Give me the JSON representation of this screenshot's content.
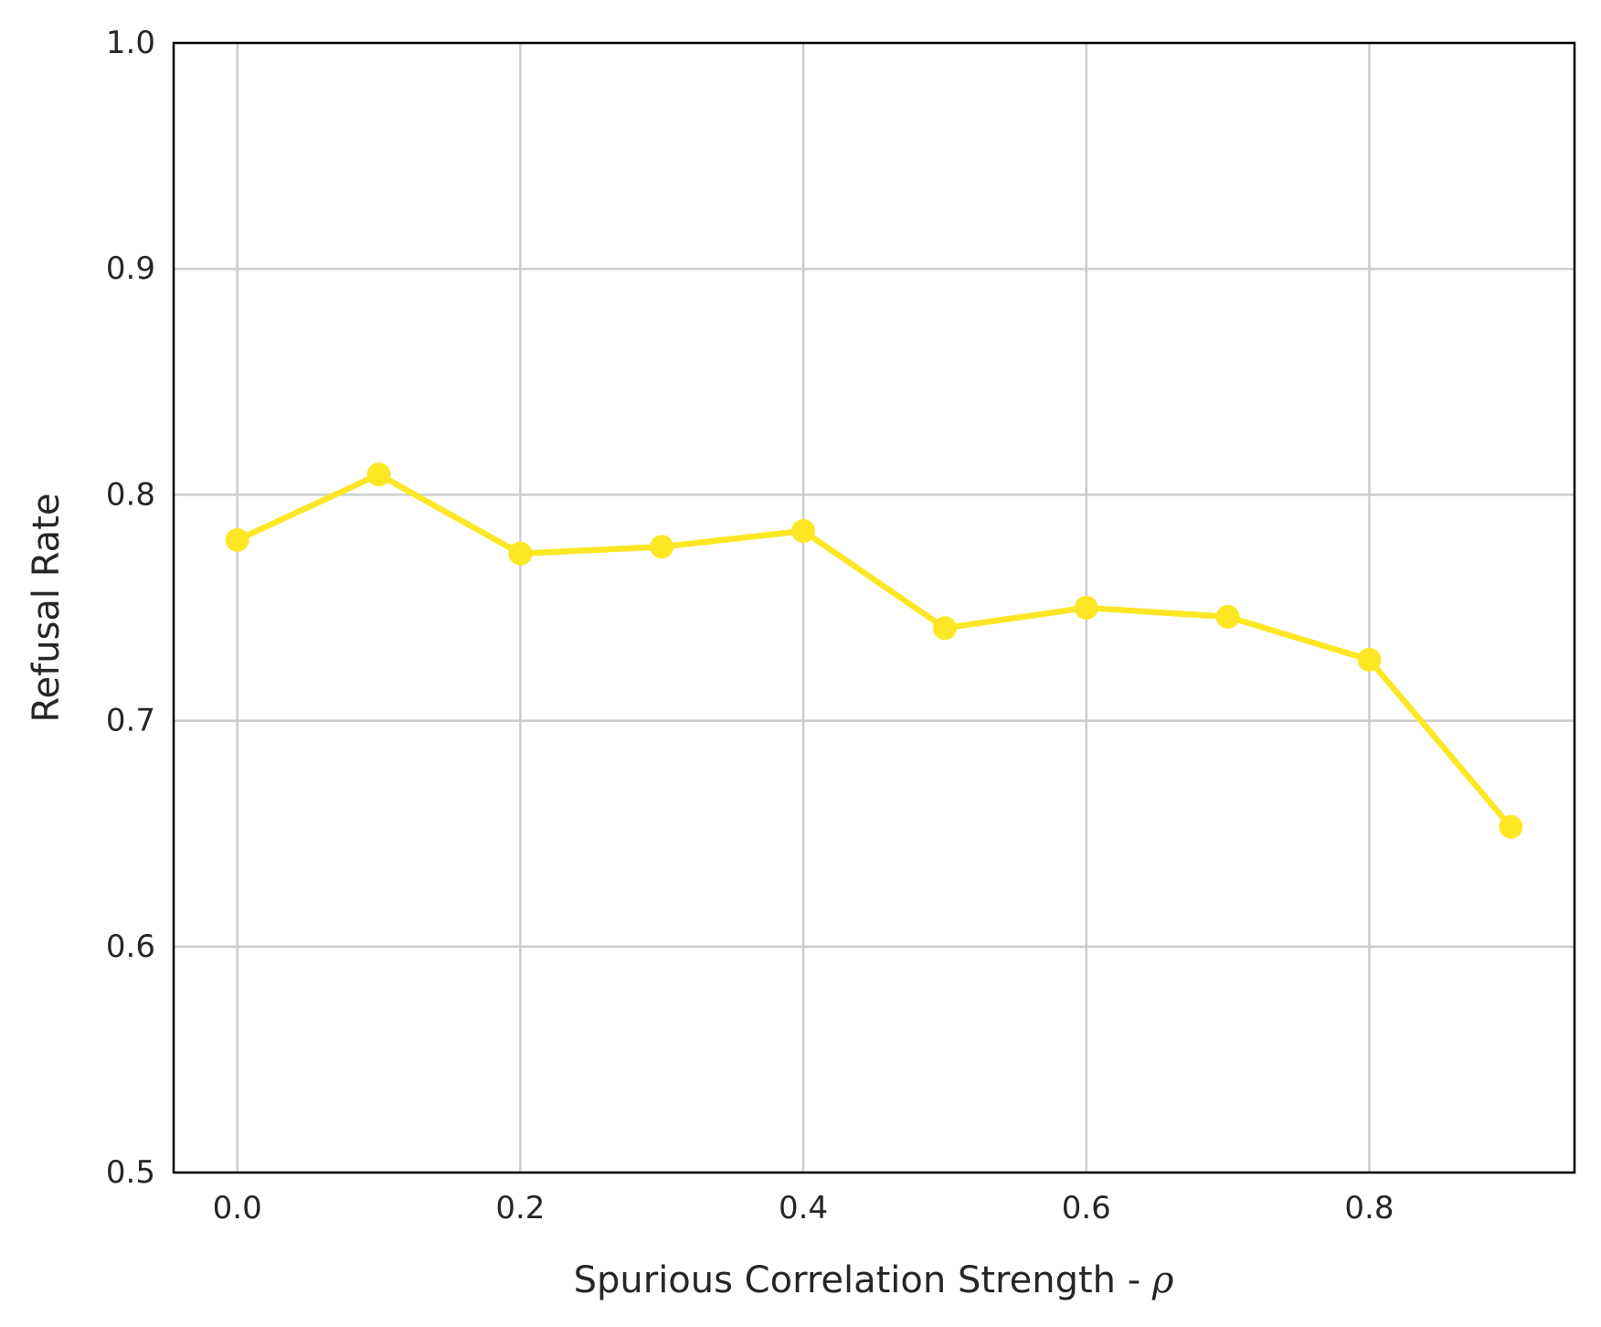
{
  "chart_data": {
    "type": "line",
    "title": "",
    "xlabel": "Spurious Correlation Strength - ",
    "xlabel_symbol": "ρ",
    "ylabel": "Refusal Rate",
    "xlim": [
      -0.045,
      0.945
    ],
    "ylim": [
      0.5,
      1.0
    ],
    "xticks": [
      0.0,
      0.2,
      0.4,
      0.6,
      0.8
    ],
    "xtick_labels": [
      "0.0",
      "0.2",
      "0.4",
      "0.6",
      "0.8"
    ],
    "yticks": [
      0.5,
      0.6,
      0.7,
      0.8,
      0.9,
      1.0
    ],
    "ytick_labels": [
      "0.5",
      "0.6",
      "0.7",
      "0.8",
      "0.9",
      "1.0"
    ],
    "grid": true,
    "legend": "none",
    "series": [
      {
        "color": "#fde725",
        "marker": "circle",
        "x": [
          0.0,
          0.1,
          0.2,
          0.3,
          0.4,
          0.5,
          0.6,
          0.7,
          0.8,
          0.9
        ],
        "y": [
          0.78,
          0.809,
          0.774,
          0.777,
          0.784,
          0.741,
          0.75,
          0.746,
          0.727,
          0.653
        ]
      }
    ]
  }
}
